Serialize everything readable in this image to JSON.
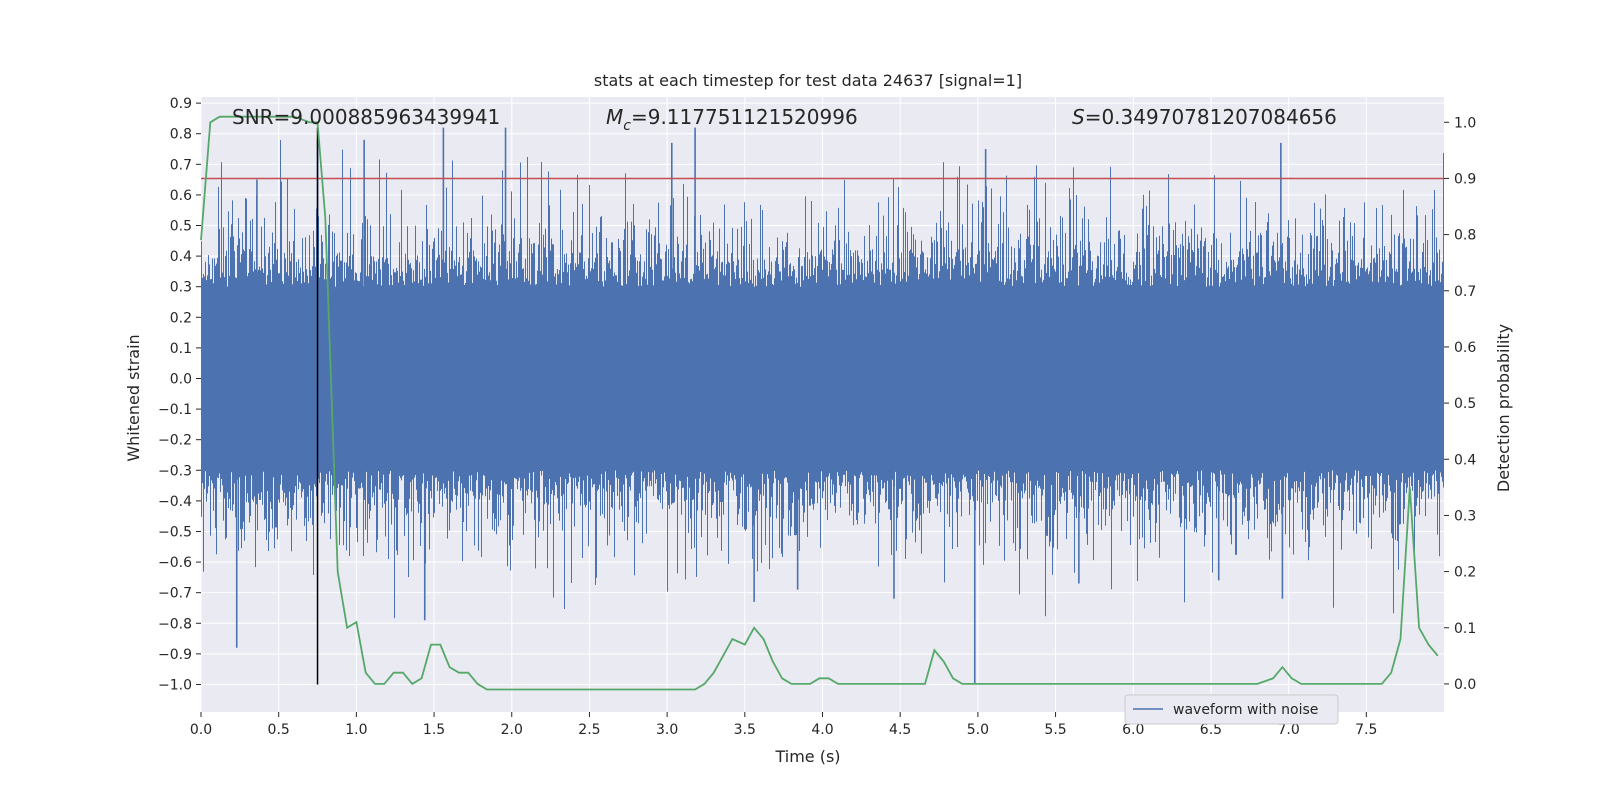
{
  "chart_data": {
    "type": "line",
    "title": "stats at each timestep for test data 24637 [signal=1]",
    "xlabel": "Time (s)",
    "ylabel": "Whitened strain",
    "y2label": "Detection probability",
    "xlim": [
      0.0,
      8.0
    ],
    "ylim": [
      -1.09,
      0.92
    ],
    "y2lim": [
      -0.05,
      1.045
    ],
    "xticks": [
      0.0,
      0.5,
      1.0,
      1.5,
      2.0,
      2.5,
      3.0,
      3.5,
      4.0,
      4.5,
      5.0,
      5.5,
      6.0,
      6.5,
      7.0,
      7.5
    ],
    "xtick_labels": [
      "0.0",
      "0.5",
      "1.0",
      "1.5",
      "2.0",
      "2.5",
      "3.0",
      "3.5",
      "4.0",
      "4.5",
      "5.0",
      "5.5",
      "6.0",
      "6.5",
      "7.0",
      "7.5"
    ],
    "yticks": [
      0.9,
      0.8,
      0.7,
      0.6,
      0.5,
      0.4,
      0.3,
      0.2,
      0.1,
      0.0,
      -0.1,
      -0.2,
      -0.3,
      -0.4,
      -0.5,
      -0.6,
      -0.7,
      -0.8,
      -0.9,
      -1.0
    ],
    "ytick_labels": [
      "0.9",
      "0.8",
      "0.7",
      "0.6",
      "0.5",
      "0.4",
      "0.3",
      "0.2",
      "0.1",
      "0.0",
      "−0.1",
      "−0.2",
      "−0.3",
      "−0.4",
      "−0.5",
      "−0.6",
      "−0.7",
      "−0.8",
      "−0.9",
      "−1.0"
    ],
    "y2ticks": [
      1.0,
      0.9,
      0.8,
      0.7,
      0.6,
      0.5,
      0.4,
      0.3,
      0.2,
      0.1,
      0.0
    ],
    "y2tick_labels": [
      "1.0",
      "0.9",
      "0.8",
      "0.7",
      "0.6",
      "0.5",
      "0.4",
      "0.3",
      "0.2",
      "0.1",
      "0.0"
    ],
    "annotations": {
      "snr": "SNR=9.000885963439941",
      "mc_symbol": "M",
      "mc_sub": "c",
      "mc_value": "=9.117751121520996",
      "s_symbol": "S",
      "s_value": "=0.34970781207084656"
    },
    "threshold_probability": 0.9,
    "marker_time": 0.75,
    "marker_strain_range": [
      -1.0,
      0.82
    ],
    "waveform": {
      "name": "waveform with noise",
      "color": "#4c72b0",
      "band_amplitude": 0.3,
      "spike_peaks": [
        {
          "t": 0.23,
          "v": -0.88
        },
        {
          "t": 0.36,
          "v": 0.65
        },
        {
          "t": 0.75,
          "v": 0.78
        },
        {
          "t": 1.05,
          "v": 0.78
        },
        {
          "t": 1.44,
          "v": -0.79
        },
        {
          "t": 1.56,
          "v": 0.82
        },
        {
          "t": 1.96,
          "v": 0.82
        },
        {
          "t": 3.03,
          "v": 0.77
        },
        {
          "t": 3.18,
          "v": 0.82
        },
        {
          "t": 3.56,
          "v": -0.73
        },
        {
          "t": 3.84,
          "v": -0.69
        },
        {
          "t": 4.46,
          "v": -0.72
        },
        {
          "t": 4.98,
          "v": -1.0
        },
        {
          "t": 5.05,
          "v": 0.75
        },
        {
          "t": 5.65,
          "v": -0.67
        },
        {
          "t": 6.55,
          "v": -0.66
        },
        {
          "t": 6.95,
          "v": 0.77
        },
        {
          "t": 6.96,
          "v": -0.72
        }
      ]
    },
    "probability": {
      "color": "#55a868",
      "x": [
        0.0,
        0.06,
        0.12,
        0.2,
        0.3,
        0.4,
        0.5,
        0.6,
        0.7,
        0.75,
        0.8,
        0.88,
        0.94,
        1.0,
        1.06,
        1.12,
        1.18,
        1.24,
        1.3,
        1.36,
        1.42,
        1.48,
        1.54,
        1.6,
        1.66,
        1.72,
        1.78,
        1.84,
        1.9,
        2.0,
        2.1,
        2.2,
        2.3,
        2.4,
        2.5,
        2.6,
        2.7,
        2.8,
        2.9,
        3.0,
        3.06,
        3.12,
        3.18,
        3.24,
        3.3,
        3.36,
        3.42,
        3.5,
        3.56,
        3.62,
        3.68,
        3.74,
        3.8,
        3.86,
        3.92,
        3.98,
        4.04,
        4.1,
        4.2,
        4.3,
        4.4,
        4.5,
        4.6,
        4.66,
        4.72,
        4.78,
        4.84,
        4.9,
        5.0,
        5.1,
        5.2,
        5.4,
        5.6,
        5.8,
        6.0,
        6.2,
        6.4,
        6.6,
        6.8,
        6.9,
        6.96,
        7.02,
        7.08,
        7.14,
        7.2,
        7.3,
        7.4,
        7.5,
        7.6,
        7.66,
        7.72,
        7.78,
        7.84,
        7.9,
        7.96
      ],
      "y": [
        0.79,
        1.0,
        1.01,
        1.01,
        1.01,
        1.01,
        1.01,
        1.01,
        1.0,
        1.0,
        0.83,
        0.2,
        0.1,
        0.11,
        0.02,
        0.0,
        0.0,
        0.02,
        0.02,
        0.0,
        0.01,
        0.07,
        0.07,
        0.03,
        0.02,
        0.02,
        0.0,
        -0.01,
        -0.01,
        -0.01,
        -0.01,
        -0.01,
        -0.01,
        -0.01,
        -0.01,
        -0.01,
        -0.01,
        -0.01,
        -0.01,
        -0.01,
        -0.01,
        -0.01,
        -0.01,
        0.0,
        0.02,
        0.05,
        0.08,
        0.07,
        0.1,
        0.08,
        0.04,
        0.01,
        0.0,
        0.0,
        0.0,
        0.01,
        0.01,
        0.0,
        0.0,
        0.0,
        0.0,
        0.0,
        0.0,
        0.0,
        0.06,
        0.04,
        0.01,
        0.0,
        0.0,
        0.0,
        0.0,
        0.0,
        0.0,
        0.0,
        0.0,
        0.0,
        0.0,
        0.0,
        0.0,
        0.01,
        0.03,
        0.01,
        0.0,
        0.0,
        0.0,
        0.0,
        0.0,
        0.0,
        0.0,
        0.02,
        0.08,
        0.35,
        0.1,
        0.07,
        0.05
      ]
    },
    "legend": {
      "position": "lower-right",
      "entries": [
        "waveform with noise"
      ]
    },
    "grid": true,
    "colors": {
      "background": "#eaeaf2",
      "grid": "#ffffff",
      "threshold": "#c44e52",
      "marker": "#000000"
    }
  }
}
